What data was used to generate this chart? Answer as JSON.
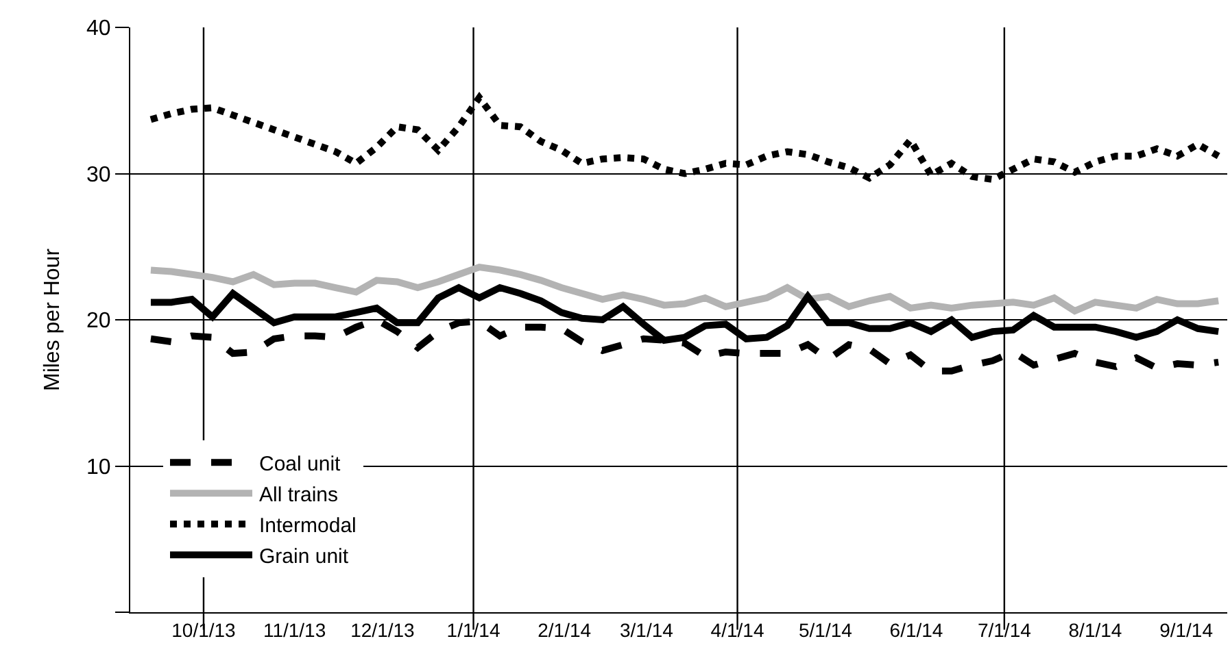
{
  "chart_data": {
    "type": "line",
    "ylabel": "Miles per Hour",
    "x": [
      "2013-09-13",
      "2013-09-20",
      "2013-09-27",
      "2013-10-04",
      "2013-10-11",
      "2013-10-18",
      "2013-10-25",
      "2013-11-01",
      "2013-11-08",
      "2013-11-15",
      "2013-11-22",
      "2013-11-29",
      "2013-12-06",
      "2013-12-13",
      "2013-12-20",
      "2013-12-27",
      "2014-01-03",
      "2014-01-10",
      "2014-01-17",
      "2014-01-24",
      "2014-01-31",
      "2014-02-07",
      "2014-02-14",
      "2014-02-21",
      "2014-02-28",
      "2014-03-07",
      "2014-03-14",
      "2014-03-21",
      "2014-03-28",
      "2014-04-04",
      "2014-04-11",
      "2014-04-18",
      "2014-04-25",
      "2014-05-02",
      "2014-05-09",
      "2014-05-16",
      "2014-05-23",
      "2014-05-30",
      "2014-06-06",
      "2014-06-13",
      "2014-06-20",
      "2014-06-27",
      "2014-07-04",
      "2014-07-11",
      "2014-07-18",
      "2014-07-25",
      "2014-08-01",
      "2014-08-08",
      "2014-08-15",
      "2014-08-22",
      "2014-08-29",
      "2014-09-05",
      "2014-09-12"
    ],
    "series": [
      {
        "name": "Coal unit",
        "color": "#000000",
        "line_style": "dashed",
        "values": [
          18.7,
          18.5,
          18.9,
          18.8,
          17.7,
          17.8,
          18.7,
          18.9,
          18.9,
          18.8,
          19.5,
          20.0,
          19.2,
          18.1,
          19.2,
          19.8,
          19.9,
          18.9,
          19.5,
          19.5,
          19.4,
          18.5,
          17.9,
          18.3,
          18.7,
          18.6,
          18.4,
          17.5,
          17.8,
          17.7,
          17.7,
          17.7,
          18.3,
          17.3,
          18.3,
          18.0,
          17.0,
          17.6,
          16.5,
          16.5,
          16.9,
          17.2,
          17.8,
          16.9,
          17.3,
          17.7,
          17.1,
          16.8,
          17.4,
          16.7,
          17.0,
          16.9,
          17.1
        ]
      },
      {
        "name": "All trains",
        "color": "#b3b3b3",
        "line_style": "solid",
        "values": [
          23.4,
          23.3,
          23.1,
          22.9,
          22.6,
          23.1,
          22.4,
          22.5,
          22.5,
          22.2,
          21.9,
          22.7,
          22.6,
          22.2,
          22.6,
          23.1,
          23.6,
          23.4,
          23.1,
          22.7,
          22.2,
          21.8,
          21.4,
          21.7,
          21.4,
          21.0,
          21.1,
          21.5,
          20.9,
          21.2,
          21.5,
          22.2,
          21.4,
          21.6,
          20.9,
          21.3,
          21.6,
          20.8,
          21.0,
          20.8,
          21.0,
          21.1,
          21.2,
          21.0,
          21.5,
          20.6,
          21.2,
          21.0,
          20.8,
          21.4,
          21.1,
          21.1,
          21.3
        ]
      },
      {
        "name": "Intermodal",
        "color": "#000000",
        "line_style": "dotted",
        "values": [
          33.7,
          34.1,
          34.4,
          34.5,
          34.0,
          33.5,
          33.0,
          32.5,
          32.0,
          31.5,
          30.7,
          31.8,
          33.2,
          33.0,
          31.6,
          33.2,
          35.2,
          33.3,
          33.2,
          32.2,
          31.6,
          30.7,
          31.0,
          31.1,
          31.0,
          30.3,
          30.0,
          30.3,
          30.7,
          30.6,
          31.2,
          31.5,
          31.3,
          30.8,
          30.4,
          29.7,
          30.6,
          32.3,
          29.9,
          30.7,
          29.8,
          29.6,
          30.3,
          31.0,
          30.8,
          30.1,
          30.8,
          31.2,
          31.2,
          31.7,
          31.2,
          32.0,
          31.2
        ]
      },
      {
        "name": "Grain unit",
        "color": "#000000",
        "line_style": "solid",
        "values": [
          21.2,
          21.2,
          21.4,
          20.2,
          21.8,
          20.8,
          19.8,
          20.2,
          20.2,
          20.2,
          20.5,
          20.8,
          19.8,
          19.8,
          21.5,
          22.2,
          21.5,
          22.2,
          21.8,
          21.3,
          20.5,
          20.1,
          20.0,
          20.9,
          19.7,
          18.6,
          18.8,
          19.6,
          19.7,
          18.7,
          18.8,
          19.6,
          21.6,
          19.8,
          19.8,
          19.4,
          19.4,
          19.8,
          19.2,
          20.0,
          18.8,
          19.2,
          19.3,
          20.3,
          19.5,
          19.5,
          19.5,
          19.2,
          18.8,
          19.2,
          20.0,
          19.4,
          19.2
        ]
      }
    ],
    "xlim": [
      "2013-09-06",
      "2014-09-15"
    ],
    "xticks": [
      {
        "value": "2013-10-01",
        "label": "10/1/13"
      },
      {
        "value": "2013-11-01",
        "label": "11/1/13"
      },
      {
        "value": "2013-12-01",
        "label": "12/1/13"
      },
      {
        "value": "2014-01-01",
        "label": "1/1/14"
      },
      {
        "value": "2014-02-01",
        "label": "2/1/14"
      },
      {
        "value": "2014-03-01",
        "label": "3/1/14"
      },
      {
        "value": "2014-04-01",
        "label": "4/1/14"
      },
      {
        "value": "2014-05-01",
        "label": "5/1/14"
      },
      {
        "value": "2014-06-01",
        "label": "6/1/14"
      },
      {
        "value": "2014-07-01",
        "label": "7/1/14"
      },
      {
        "value": "2014-08-01",
        "label": "8/1/14"
      },
      {
        "value": "2014-09-01",
        "label": "9/1/14"
      }
    ],
    "ylim": [
      0,
      40
    ],
    "yticks": [
      {
        "value": 0,
        "label": null
      },
      10,
      20,
      30,
      40
    ],
    "ref_lines": [
      {
        "axis": "x",
        "value": "2013-10-01",
        "color": "#000000"
      },
      {
        "axis": "x",
        "value": "2014-01-01",
        "color": "#000000"
      },
      {
        "axis": "x",
        "value": "2014-04-01",
        "color": "#000000"
      },
      {
        "axis": "x",
        "value": "2014-07-01",
        "color": "#000000"
      }
    ],
    "grid": "y",
    "legend": "bottom left",
    "marker": "none"
  }
}
